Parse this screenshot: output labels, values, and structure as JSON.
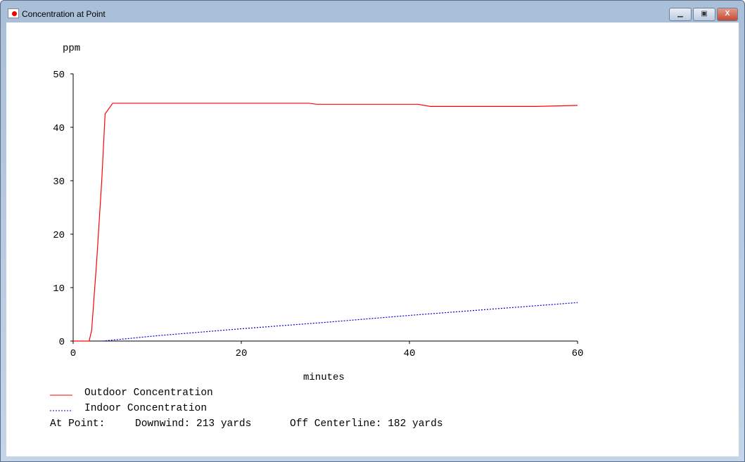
{
  "window": {
    "title": "Concentration at Point",
    "buttons": [
      "minimize",
      "maximize",
      "close"
    ]
  },
  "chart_data": {
    "type": "line",
    "ylabel": "ppm",
    "xlabel": "minutes",
    "xlim": [
      0,
      60
    ],
    "ylim": [
      0,
      50
    ],
    "xticks": [
      "0",
      "20",
      "40",
      "60"
    ],
    "yticks": [
      "0",
      "10",
      "20",
      "30",
      "40",
      "50"
    ],
    "grid": false,
    "legend_placement": "bottom-left",
    "series": [
      {
        "name": "Outdoor Concentration",
        "color": "#ff0000",
        "style": "solid",
        "x": [
          0,
          1.9,
          2.2,
          2.8,
          3.4,
          3.8,
          4.7,
          28,
          29,
          41,
          42.5,
          55,
          60
        ],
        "y": [
          0,
          0,
          2,
          15,
          30,
          42.5,
          44.5,
          44.5,
          44.3,
          44.3,
          43.9,
          43.9,
          44.1
        ]
      },
      {
        "name": "Indoor Concentration",
        "color": "#0000cc",
        "style": "dotted",
        "x": [
          3.5,
          10,
          20,
          30,
          40,
          50,
          60
        ],
        "y": [
          0,
          1.0,
          2.3,
          3.5,
          4.8,
          6.0,
          7.2
        ]
      }
    ]
  },
  "footer": {
    "at_point": "At Point:",
    "downwind": "Downwind: 213 yards",
    "off_centerline": "Off Centerline: 182 yards"
  }
}
